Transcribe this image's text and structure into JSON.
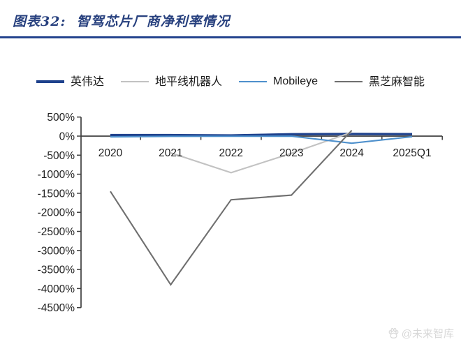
{
  "header": {
    "title": "图表32:  智驾芯片厂商净利率情况",
    "rule_color": "#24448e"
  },
  "watermark": {
    "icon": "baidu-paw",
    "text": "@未来智库",
    "color": "#d7d7d7"
  },
  "chart_data": {
    "type": "line",
    "title": "智驾芯片厂商净利率情况",
    "categories": [
      "2020",
      "2021",
      "2022",
      "2023",
      "2024",
      "2025Q1"
    ],
    "series": [
      {
        "name": "英伟达",
        "color": "#1e418c",
        "values": [
          25,
          26,
          16,
          49,
          56,
          52
        ]
      },
      {
        "name": "地平线机器人",
        "color": "#c2c2c2",
        "values": [
          null,
          -440,
          -960,
          -450,
          100,
          null
        ]
      },
      {
        "name": "Mobileye",
        "color": "#4e90cc",
        "values": [
          -20,
          -5,
          -4,
          -1,
          -186,
          -15
        ]
      },
      {
        "name": "黑芝麻智能",
        "color": "#6f6f6f",
        "values": [
          -1450,
          -3900,
          -1670,
          -1550,
          150,
          null
        ]
      }
    ],
    "ylim": [
      -4500,
      500
    ],
    "ytick_step": 500,
    "ytick_labels": [
      "500%",
      "0%",
      "-500%",
      "-1000%",
      "-1500%",
      "-2000%",
      "-2500%",
      "-3000%",
      "-3500%",
      "-4000%",
      "-4500%"
    ],
    "xlabel": "",
    "ylabel": "",
    "legend_position": "top",
    "grid": false,
    "axis_color": "#3f3f3f"
  }
}
